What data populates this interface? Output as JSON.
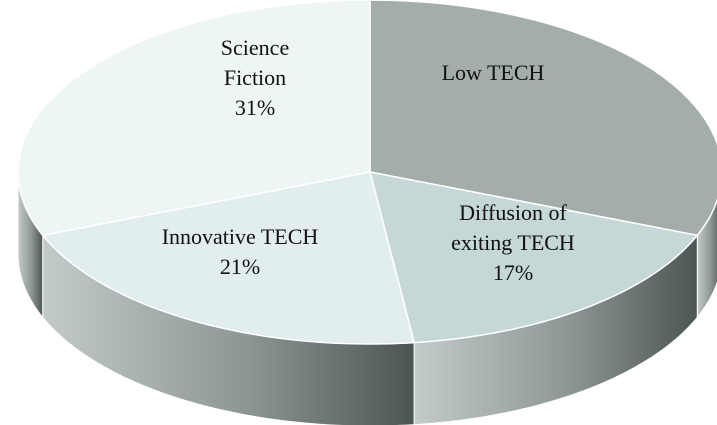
{
  "chart_data": {
    "type": "pie",
    "categories": [
      "Low TECH",
      "Diffusion of exiting TECH",
      "Innovative TECH",
      "Science Fiction"
    ],
    "values": [
      31,
      17,
      21,
      31
    ],
    "value_labels": [
      null,
      "17%",
      "21%",
      "31%"
    ],
    "colors": [
      "#a3aeab",
      "#c6d7d7",
      "#e2eded",
      "#eef5f5"
    ],
    "three_d": true
  }
}
